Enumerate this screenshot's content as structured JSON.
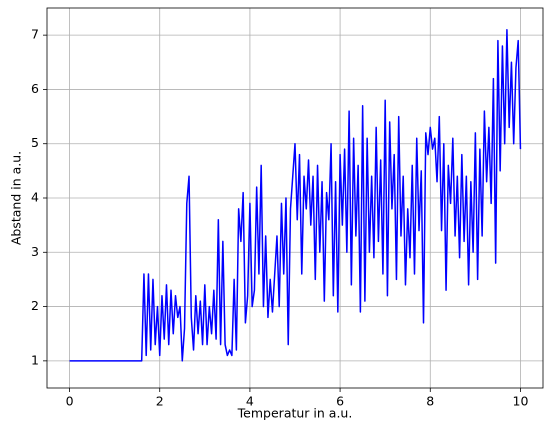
{
  "chart_data": {
    "type": "line",
    "xlabel": "Temperatur in a.u.",
    "ylabel": "Abstand in a.u.",
    "xlim": [
      -0.5,
      10.5
    ],
    "xticks": [
      0,
      2,
      4,
      6,
      8,
      10
    ],
    "ylim": [
      0.5,
      7.5
    ],
    "yticks": [
      1,
      2,
      3,
      4,
      5,
      6,
      7
    ],
    "grid": true,
    "series": [
      {
        "color": "#0000ff",
        "x": [
          0,
          0.5,
          1,
          1.5,
          1.6,
          1.65,
          1.7,
          1.75,
          1.8,
          1.85,
          1.9,
          1.95,
          2.0,
          2.05,
          2.1,
          2.15,
          2.2,
          2.25,
          2.3,
          2.35,
          2.4,
          2.45,
          2.5,
          2.55,
          2.6,
          2.65,
          2.7,
          2.75,
          2.8,
          2.85,
          2.9,
          2.95,
          3.0,
          3.05,
          3.1,
          3.15,
          3.2,
          3.25,
          3.3,
          3.35,
          3.4,
          3.45,
          3.5,
          3.55,
          3.6,
          3.65,
          3.7,
          3.75,
          3.8,
          3.85,
          3.9,
          3.95,
          4.0,
          4.05,
          4.1,
          4.15,
          4.2,
          4.25,
          4.3,
          4.35,
          4.4,
          4.45,
          4.5,
          4.55,
          4.6,
          4.65,
          4.7,
          4.75,
          4.8,
          4.85,
          4.9,
          4.95,
          5.0,
          5.05,
          5.1,
          5.15,
          5.2,
          5.25,
          5.3,
          5.35,
          5.4,
          5.45,
          5.5,
          5.55,
          5.6,
          5.65,
          5.7,
          5.75,
          5.8,
          5.85,
          5.9,
          5.95,
          6.0,
          6.05,
          6.1,
          6.15,
          6.2,
          6.25,
          6.3,
          6.35,
          6.4,
          6.45,
          6.5,
          6.55,
          6.6,
          6.65,
          6.7,
          6.75,
          6.8,
          6.85,
          6.9,
          6.95,
          7.0,
          7.05,
          7.1,
          7.15,
          7.2,
          7.25,
          7.3,
          7.35,
          7.4,
          7.45,
          7.5,
          7.55,
          7.6,
          7.65,
          7.7,
          7.75,
          7.8,
          7.85,
          7.9,
          7.95,
          8.0,
          8.05,
          8.1,
          8.15,
          8.2,
          8.25,
          8.3,
          8.35,
          8.4,
          8.45,
          8.5,
          8.55,
          8.6,
          8.65,
          8.7,
          8.75,
          8.8,
          8.85,
          8.9,
          8.95,
          9.0,
          9.05,
          9.1,
          9.15,
          9.2,
          9.25,
          9.3,
          9.35,
          9.4,
          9.45,
          9.5,
          9.55,
          9.6,
          9.65,
          9.7,
          9.75,
          9.8,
          9.85,
          9.9,
          9.95,
          10
        ],
        "values": [
          1,
          1,
          1,
          1,
          1,
          2.6,
          1.1,
          2.6,
          1.2,
          2.5,
          1.3,
          2,
          1.1,
          2.2,
          1.4,
          2.4,
          1.3,
          2.3,
          1.5,
          2.2,
          1.8,
          2,
          1,
          1.6,
          3.9,
          4.4,
          1.8,
          1.2,
          2.2,
          1.5,
          2.1,
          1.3,
          2.4,
          1.3,
          2,
          1.5,
          2.3,
          1.4,
          3.6,
          1.3,
          3.2,
          1.3,
          1.1,
          1.2,
          1.1,
          2.5,
          1.2,
          3.8,
          3.2,
          4.1,
          1.7,
          2.2,
          3.9,
          2,
          2.3,
          4.2,
          2.6,
          4.6,
          2,
          3.3,
          1.8,
          2.5,
          1.9,
          2.6,
          3.3,
          2,
          3.9,
          2.6,
          4,
          1.3,
          3.8,
          4.4,
          5,
          3.6,
          4.8,
          2.6,
          4.4,
          3.8,
          4.7,
          3.5,
          4.4,
          2.5,
          4.6,
          3,
          4.3,
          2.1,
          4.1,
          3.6,
          5,
          2.2,
          4.3,
          1.9,
          4.8,
          3.5,
          4.9,
          3,
          5.6,
          2.4,
          5.1,
          3.3,
          4.6,
          1.9,
          5.7,
          2.1,
          5.1,
          3,
          4.4,
          2.9,
          5.3,
          3.2,
          4.7,
          2.6,
          5.8,
          2.2,
          5.4,
          3.8,
          4.8,
          2.5,
          5.5,
          3.3,
          4.4,
          2.4,
          3.8,
          2.9,
          4.6,
          2.6,
          5.1,
          3.4,
          4.5,
          1.7,
          5.2,
          4.8,
          5.3,
          4.9,
          5.1,
          4.3,
          5.5,
          3.4,
          5,
          2.3,
          4.6,
          3.9,
          5.1,
          3.3,
          4.4,
          2.9,
          4.8,
          3.2,
          4.4,
          2.4,
          4.3,
          3,
          5.2,
          2.5,
          4.9,
          3.3,
          5.6,
          4.3,
          5.3,
          3.9,
          6.2,
          2.8,
          6.9,
          4.5,
          6.8,
          5,
          7.1,
          5.3,
          6.5,
          5,
          6.4,
          6.9,
          4.9
        ]
      }
    ]
  }
}
